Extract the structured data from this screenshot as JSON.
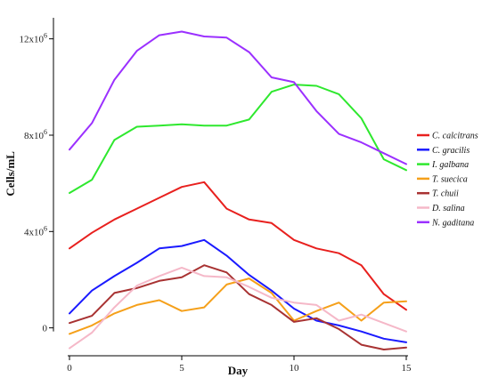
{
  "chart_data": {
    "type": "line",
    "xlabel": "Day",
    "ylabel": "Cells/mL",
    "x": [
      0,
      1,
      2,
      3,
      4,
      5,
      6,
      7,
      8,
      9,
      10,
      11,
      12,
      13,
      14,
      15
    ],
    "xlim": [
      0,
      15
    ],
    "ylim": [
      -0.9,
      12.8
    ],
    "xticks": [
      {
        "value": 0,
        "label": "0"
      },
      {
        "value": 5,
        "label": "5"
      },
      {
        "value": 10,
        "label": "10"
      },
      {
        "value": 15,
        "label": "15"
      }
    ],
    "yticks": [
      {
        "value": 0,
        "label": "0"
      },
      {
        "value": 4,
        "label": "4x10",
        "exp": "6"
      },
      {
        "value": 8,
        "label": "8x10",
        "exp": "6"
      },
      {
        "value": 12,
        "label": "12x10",
        "exp": "6"
      }
    ],
    "y_unit_note": "values in millions of cells/mL",
    "grid": false,
    "legend_position": "right",
    "series": [
      {
        "name": "C. calcitrans",
        "color": "#e8201e",
        "values": [
          3.3,
          3.95,
          4.5,
          4.95,
          5.4,
          5.85,
          6.05,
          4.95,
          4.5,
          4.35,
          3.65,
          3.3,
          3.1,
          2.6,
          1.4,
          0.75
        ]
      },
      {
        "name": "C. gracilis",
        "color": "#1a1aff",
        "values": [
          0.6,
          1.55,
          2.15,
          2.7,
          3.3,
          3.4,
          3.65,
          3.0,
          2.2,
          1.55,
          0.8,
          0.3,
          0.1,
          -0.15,
          -0.45,
          -0.6
        ]
      },
      {
        "name": "I. galbana",
        "color": "#2ee82e",
        "values": [
          5.6,
          6.15,
          7.8,
          8.35,
          8.4,
          8.45,
          8.4,
          8.4,
          8.65,
          9.8,
          10.1,
          10.05,
          9.7,
          8.7,
          7.0,
          6.55
        ]
      },
      {
        "name": "T. suecica",
        "color": "#f5a01a",
        "values": [
          -0.25,
          0.1,
          0.6,
          0.95,
          1.15,
          0.7,
          0.85,
          1.8,
          2.05,
          1.45,
          0.3,
          0.7,
          1.05,
          0.3,
          1.05,
          1.1
        ]
      },
      {
        "name": "T. chuii",
        "color": "#a83232",
        "values": [
          0.2,
          0.5,
          1.45,
          1.65,
          1.95,
          2.1,
          2.6,
          2.3,
          1.4,
          0.95,
          0.25,
          0.4,
          -0.05,
          -0.7,
          -0.9,
          -0.82
        ]
      },
      {
        "name": "D. salina",
        "color": "#f5b8c8",
        "values": [
          -0.85,
          -0.2,
          0.85,
          1.75,
          2.15,
          2.5,
          2.15,
          2.1,
          1.7,
          1.25,
          1.05,
          0.95,
          0.3,
          0.55,
          0.2,
          -0.15
        ]
      },
      {
        "name": "N. gaditana",
        "color": "#9b30ff",
        "values": [
          7.4,
          8.5,
          10.3,
          11.5,
          12.15,
          12.3,
          12.1,
          12.05,
          11.45,
          10.4,
          10.2,
          9.0,
          8.05,
          7.7,
          7.25,
          6.8
        ]
      }
    ]
  }
}
